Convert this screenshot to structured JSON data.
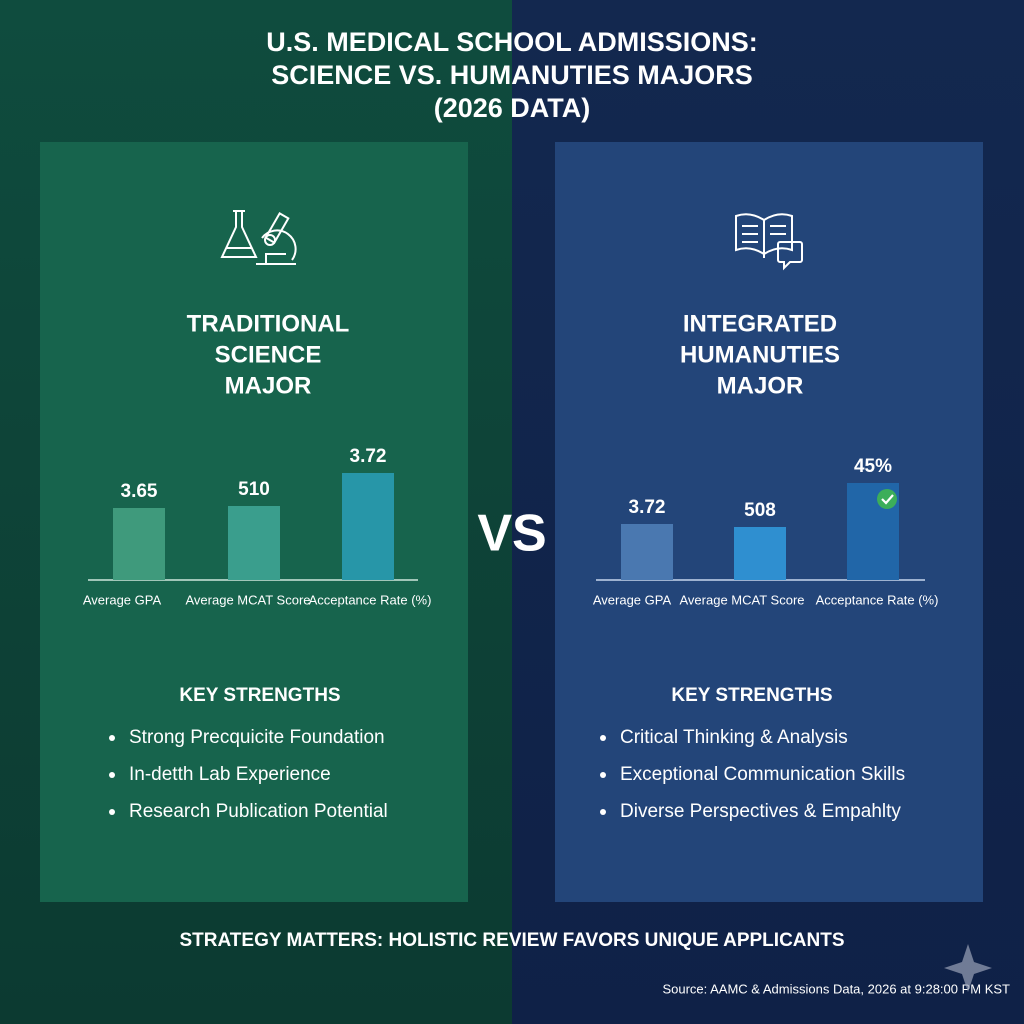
{
  "title_lines": [
    "U.S. MEDICAL SCHOOL ADMISSIONS:",
    "SCIENCE VS. HUMANUTIES MAJORS",
    "(2026 DATA)"
  ],
  "vs": "VS",
  "panels": [
    {
      "heading_lines": [
        "TRADITIONAL",
        "SCIENCE",
        "MAJOR"
      ],
      "bars": [
        {
          "label": "Average GPA",
          "value": 3.65
        },
        {
          "label": "Average MCAT Score",
          "value": 510
        },
        {
          "label": "Acceptance Rate (%)",
          "value": 3.72
        }
      ],
      "strengths_title": "KEY STRENGTHS",
      "strengths": [
        "Strong Precquicite Foundation",
        "In-detth Lab Experience",
        "Research Publication Potential"
      ]
    },
    {
      "heading_lines": [
        "INTEGRATED",
        "HUMANUTIES",
        "MAJOR"
      ],
      "bars": [
        {
          "label": "Average GPA",
          "value": 3.72
        },
        {
          "label": "Average MCAT Score",
          "value": 508
        },
        {
          "label": "Acceptance Rate (%)",
          "value": 45,
          "value_label": "45%"
        }
      ],
      "strengths_title": "KEY STRENGTHS",
      "strengths": [
        "Critical Thinking & Analysis",
        "Exceptional Communication Skills",
        "Diverse Perspectives & Empahlty"
      ]
    }
  ],
  "footer": "STRATEGY MATTERS: HOLISTIC REVIEW FAVORS UNIQUE APPLICANTS",
  "source": "Source: AAMC & Admissions Data, 2026 at 9:28:00 PM KST"
}
